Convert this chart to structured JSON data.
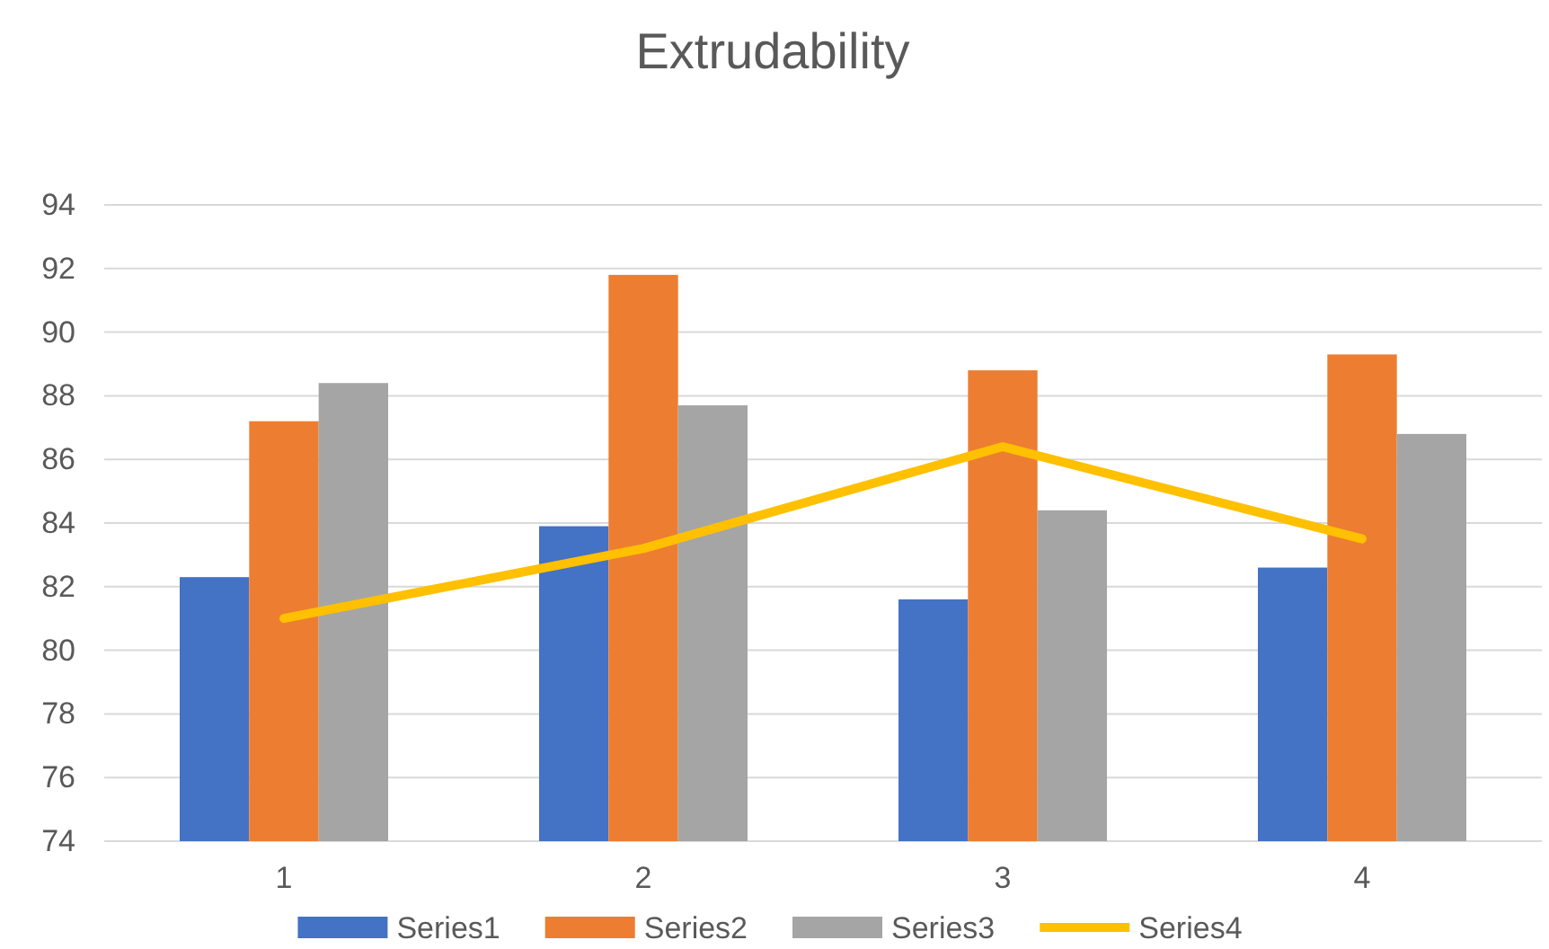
{
  "chart_data": {
    "type": "bar",
    "title": "Extrudability",
    "categories": [
      "1",
      "2",
      "3",
      "4"
    ],
    "series": [
      {
        "name": "Series1",
        "color": "#4472c4",
        "values": [
          82.3,
          83.9,
          81.6,
          82.6
        ]
      },
      {
        "name": "Series2",
        "color": "#ed7d31",
        "values": [
          87.2,
          91.8,
          88.8,
          89.3
        ]
      },
      {
        "name": "Series3",
        "color": "#a5a5a5",
        "values": [
          88.4,
          87.7,
          84.4,
          86.8
        ]
      },
      {
        "name": "Series4",
        "color": "#ffc000",
        "type": "line",
        "values": [
          81.0,
          83.2,
          86.4,
          83.5
        ]
      }
    ],
    "ylim": [
      74,
      94
    ],
    "yticks": [
      74,
      76,
      78,
      80,
      82,
      84,
      86,
      88,
      90,
      92,
      94
    ],
    "grid": "y",
    "legend": "bottom",
    "marker": "none"
  }
}
